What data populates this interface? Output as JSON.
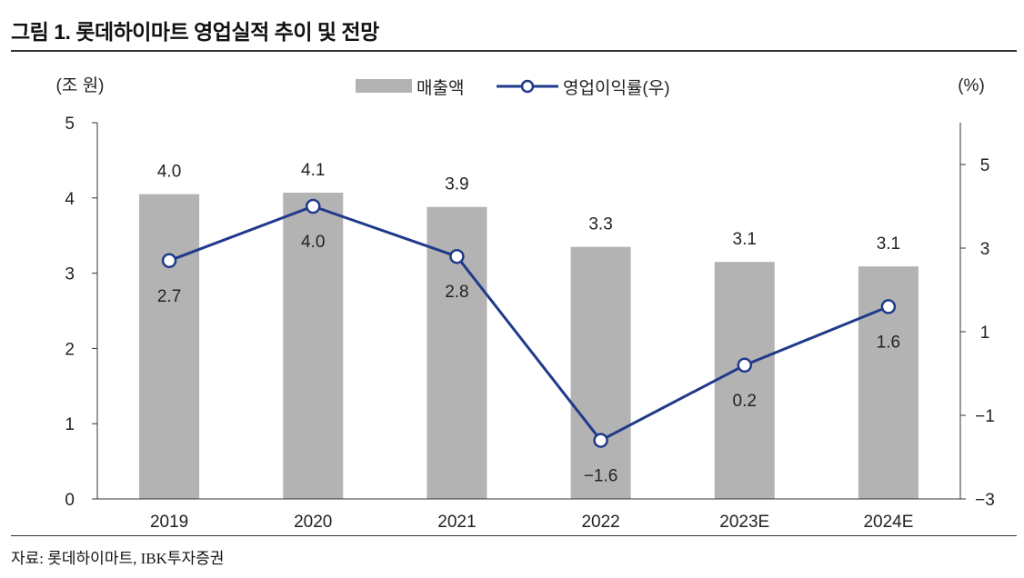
{
  "title": "그림 1. 롯데하이마트 영업실적 추이 및 전망",
  "source": "자료: 롯데하이마트, IBK투자증권",
  "chart_data": {
    "type": "bar+line",
    "categories": [
      "2019",
      "2020",
      "2021",
      "2022",
      "2023E",
      "2024E"
    ],
    "left_unit": "(조 원)",
    "right_unit": "(%)",
    "left_ylim": [
      0,
      5
    ],
    "left_ticks": [
      0,
      1,
      2,
      3,
      4,
      5
    ],
    "right_ylim": [
      -3,
      6
    ],
    "right_ticks": [
      -3,
      -1,
      1,
      3,
      5
    ],
    "grid": false,
    "legend_position": "top-center",
    "series": [
      {
        "name": "매출액",
        "type": "bar",
        "color": "#b3b3b3",
        "values": [
          4.05,
          4.07,
          3.88,
          3.35,
          3.15,
          3.09
        ],
        "labels": [
          "4.0",
          "4.1",
          "3.9",
          "3.3",
          "3.1",
          "3.1"
        ]
      },
      {
        "name": "영업이익률(우)",
        "type": "line",
        "axis": "right",
        "color": "#1f3a8a",
        "values": [
          2.7,
          4.0,
          2.8,
          -1.6,
          0.2,
          1.6
        ],
        "labels": [
          "2.7",
          "4.0",
          "2.8",
          "−1.6",
          "0.2",
          "1.6"
        ]
      }
    ]
  }
}
